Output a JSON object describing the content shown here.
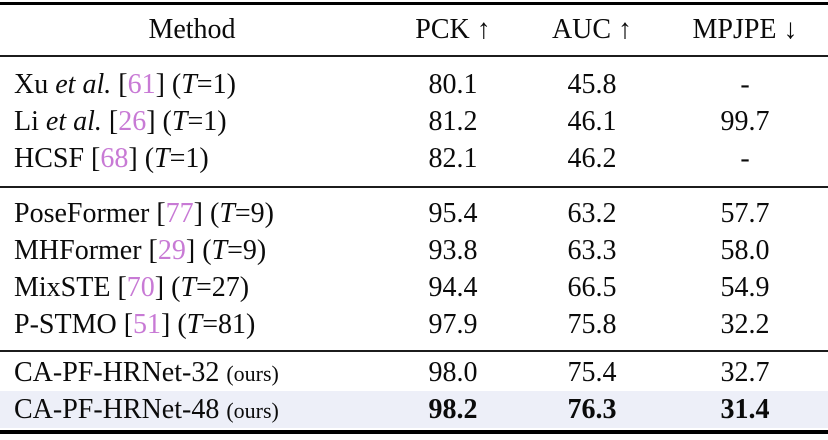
{
  "colors": {
    "citation": "#c87ad5",
    "highlight_row": "#edeff8",
    "rule": "#000000",
    "text": "#0b0b0b",
    "background": "#ffffff"
  },
  "table": {
    "headers": [
      {
        "label": "Method"
      },
      {
        "label": "PCK ↑"
      },
      {
        "label": "AUC ↑"
      },
      {
        "label": "MPJPE ↓"
      }
    ],
    "sections": [
      {
        "rows": [
          {
            "method_parts": [
              {
                "text": "Xu ",
                "style": "normal"
              },
              {
                "text": "et al.",
                "style": "italic"
              },
              {
                "text": " [",
                "style": "normal"
              },
              {
                "text": "61",
                "style": "cite"
              },
              {
                "text": "] (",
                "style": "normal"
              },
              {
                "text": "T",
                "style": "italic"
              },
              {
                "text": "=1)",
                "style": "normal"
              }
            ],
            "pck": "80.1",
            "auc": "45.8",
            "mpjpe": "-",
            "bold": false,
            "highlight": false
          },
          {
            "method_parts": [
              {
                "text": "Li ",
                "style": "normal"
              },
              {
                "text": "et al.",
                "style": "italic"
              },
              {
                "text": " [",
                "style": "normal"
              },
              {
                "text": "26",
                "style": "cite"
              },
              {
                "text": "] (",
                "style": "normal"
              },
              {
                "text": "T",
                "style": "italic"
              },
              {
                "text": "=1)",
                "style": "normal"
              }
            ],
            "pck": "81.2",
            "auc": "46.1",
            "mpjpe": "99.7",
            "bold": false,
            "highlight": false
          },
          {
            "method_parts": [
              {
                "text": "HCSF [",
                "style": "normal"
              },
              {
                "text": "68",
                "style": "cite"
              },
              {
                "text": "] (",
                "style": "normal"
              },
              {
                "text": "T",
                "style": "italic"
              },
              {
                "text": "=1)",
                "style": "normal"
              }
            ],
            "pck": "82.1",
            "auc": "46.2",
            "mpjpe": "-",
            "bold": false,
            "highlight": false
          }
        ]
      },
      {
        "rows": [
          {
            "method_parts": [
              {
                "text": "PoseFormer [",
                "style": "normal"
              },
              {
                "text": "77",
                "style": "cite"
              },
              {
                "text": "] (",
                "style": "normal"
              },
              {
                "text": "T",
                "style": "italic"
              },
              {
                "text": "=9)",
                "style": "normal"
              }
            ],
            "pck": "95.4",
            "auc": "63.2",
            "mpjpe": "57.7",
            "bold": false,
            "highlight": false
          },
          {
            "method_parts": [
              {
                "text": "MHFormer [",
                "style": "normal"
              },
              {
                "text": "29",
                "style": "cite"
              },
              {
                "text": "] (",
                "style": "normal"
              },
              {
                "text": "T",
                "style": "italic"
              },
              {
                "text": "=9)",
                "style": "normal"
              }
            ],
            "pck": "93.8",
            "auc": "63.3",
            "mpjpe": "58.0",
            "bold": false,
            "highlight": false
          },
          {
            "method_parts": [
              {
                "text": "MixSTE [",
                "style": "normal"
              },
              {
                "text": "70",
                "style": "cite"
              },
              {
                "text": "] (",
                "style": "normal"
              },
              {
                "text": "T",
                "style": "italic"
              },
              {
                "text": "=27)",
                "style": "normal"
              }
            ],
            "pck": "94.4",
            "auc": "66.5",
            "mpjpe": "54.9",
            "bold": false,
            "highlight": false
          },
          {
            "method_parts": [
              {
                "text": "P-STMO [",
                "style": "normal"
              },
              {
                "text": "51",
                "style": "cite"
              },
              {
                "text": "] (",
                "style": "normal"
              },
              {
                "text": "T",
                "style": "italic"
              },
              {
                "text": "=81)",
                "style": "normal"
              }
            ],
            "pck": "97.9",
            "auc": "75.8",
            "mpjpe": "32.2",
            "bold": false,
            "highlight": false
          }
        ]
      },
      {
        "rows": [
          {
            "method_parts": [
              {
                "text": "CA-PF-HRNet-32 ",
                "style": "normal"
              },
              {
                "text": "(ours)",
                "style": "small"
              }
            ],
            "pck": "98.0",
            "auc": "75.4",
            "mpjpe": "32.7",
            "bold": false,
            "highlight": false
          },
          {
            "method_parts": [
              {
                "text": "CA-PF-HRNet-48 ",
                "style": "normal"
              },
              {
                "text": "(ours)",
                "style": "small"
              }
            ],
            "pck": "98.2",
            "auc": "76.3",
            "mpjpe": "31.4",
            "bold": true,
            "highlight": true
          }
        ]
      }
    ]
  }
}
